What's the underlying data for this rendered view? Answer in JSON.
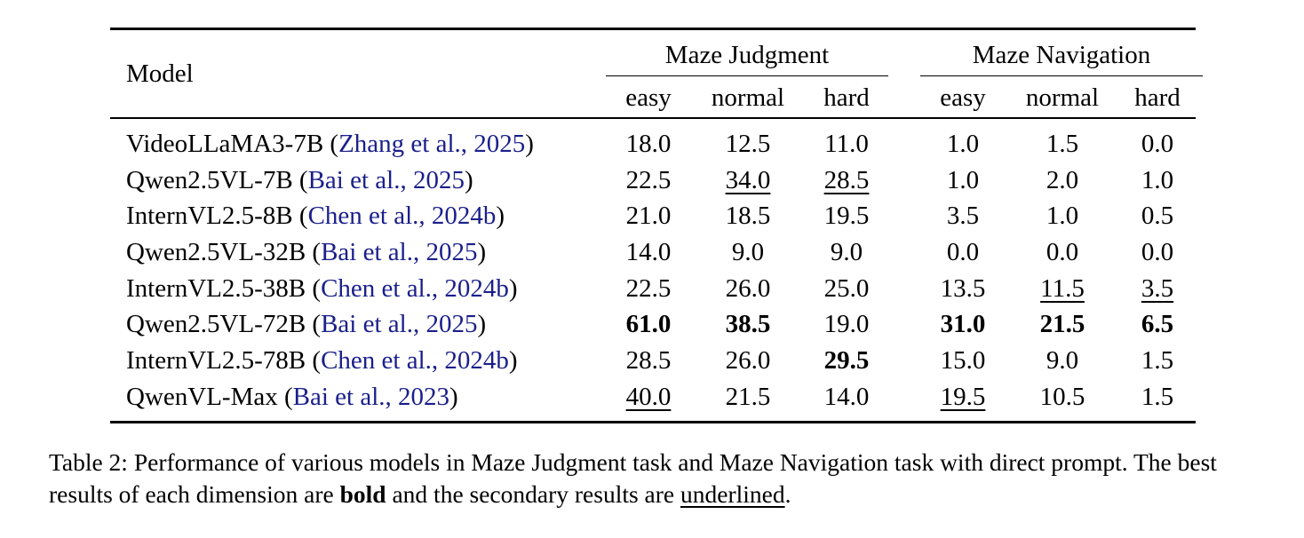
{
  "table": {
    "model_header": "Model",
    "groups": [
      {
        "title": "Maze Judgment",
        "subs": [
          "easy",
          "normal",
          "hard"
        ]
      },
      {
        "title": "Maze Navigation",
        "subs": [
          "easy",
          "normal",
          "hard"
        ]
      }
    ],
    "rows": [
      {
        "name": "VideoLLaMA3-7B",
        "cite": "Zhang et al., 2025",
        "values": [
          "18.0",
          "12.5",
          "11.0",
          "1.0",
          "1.5",
          "0.0"
        ],
        "bold": [],
        "underline": []
      },
      {
        "name": "Qwen2.5VL-7B",
        "cite": "Bai et al., 2025",
        "values": [
          "22.5",
          "34.0",
          "28.5",
          "1.0",
          "2.0",
          "1.0"
        ],
        "bold": [],
        "underline": [
          1,
          2
        ]
      },
      {
        "name": "InternVL2.5-8B",
        "cite": "Chen et al., 2024b",
        "values": [
          "21.0",
          "18.5",
          "19.5",
          "3.5",
          "1.0",
          "0.5"
        ],
        "bold": [],
        "underline": []
      },
      {
        "name": "Qwen2.5VL-32B",
        "cite": "Bai et al., 2025",
        "values": [
          "14.0",
          "9.0",
          "9.0",
          "0.0",
          "0.0",
          "0.0"
        ],
        "bold": [],
        "underline": []
      },
      {
        "name": "InternVL2.5-38B",
        "cite": "Chen et al., 2024b",
        "values": [
          "22.5",
          "26.0",
          "25.0",
          "13.5",
          "11.5",
          "3.5"
        ],
        "bold": [],
        "underline": [
          4,
          5
        ]
      },
      {
        "name": "Qwen2.5VL-72B",
        "cite": "Bai et al., 2025",
        "values": [
          "61.0",
          "38.5",
          "19.0",
          "31.0",
          "21.5",
          "6.5"
        ],
        "bold": [
          0,
          1,
          3,
          4,
          5
        ],
        "underline": []
      },
      {
        "name": "InternVL2.5-78B",
        "cite": "Chen et al., 2024b",
        "values": [
          "28.5",
          "26.0",
          "29.5",
          "15.0",
          "9.0",
          "1.5"
        ],
        "bold": [
          2
        ],
        "underline": []
      },
      {
        "name": "QwenVL-Max",
        "cite": "Bai et al., 2023",
        "values": [
          "40.0",
          "21.5",
          "14.0",
          "19.5",
          "10.5",
          "1.5"
        ],
        "bold": [],
        "underline": [
          0,
          3
        ]
      }
    ]
  },
  "caption": {
    "part1": "Table 2: Performance of various models in Maze Judgment task and Maze Navigation task with direct prompt. The best results of each dimension are ",
    "bold_word": "bold",
    "part2": " and the secondary results are ",
    "underline_word": "underlined",
    "part3": "."
  },
  "colors": {
    "citation": "#1a1f8a"
  }
}
